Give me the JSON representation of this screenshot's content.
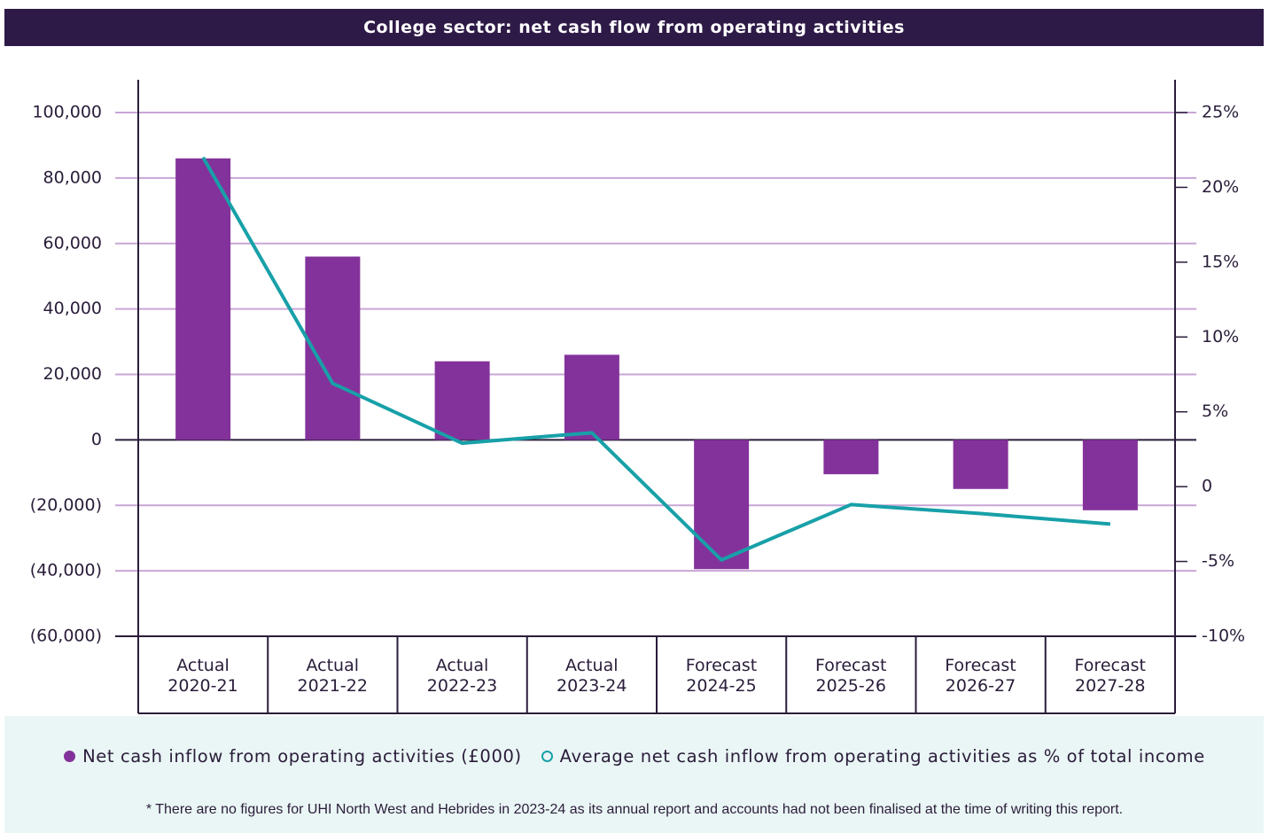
{
  "chart_data": {
    "type": "bar-line",
    "title": "College sector: net cash flow from operating activities",
    "categories": [
      "Actual\n2020-21",
      "Actual\n2021-22",
      "Actual\n2022-23",
      "Actual\n2023-24",
      "Forecast\n2024-25",
      "Forecast\n2025-26",
      "Forecast\n2026-27",
      "Forecast\n2027-28"
    ],
    "series": [
      {
        "name": "Net cash inflow from operating activities (£000)",
        "color": "#84329b",
        "type": "bar",
        "values": [
          86000,
          56000,
          24000,
          26000,
          -39500,
          -10500,
          -15000,
          -21500
        ]
      },
      {
        "name": "Average net cash inflow from operating activities as % of total income",
        "color": "#18a0a8",
        "type": "line",
        "axis": "y2",
        "values": [
          22.0,
          6.9,
          2.9,
          3.6,
          -4.9,
          -1.2,
          -1.8,
          -2.5
        ]
      }
    ],
    "ylim": [
      -60000,
      100000
    ],
    "yticks": [
      {
        "value": -60000,
        "label": "(60,000)"
      },
      {
        "value": -40000,
        "label": "(40,000)"
      },
      {
        "value": -20000,
        "label": "(20,000)"
      },
      0,
      {
        "value": 20000,
        "label": "20,000"
      },
      {
        "value": 40000,
        "label": "40,000"
      },
      {
        "value": 60000,
        "label": "60,000"
      },
      {
        "value": 80000,
        "label": "80,000"
      },
      {
        "value": 100000,
        "label": "100,000"
      }
    ],
    "y2lim": [
      -10,
      25
    ],
    "y2ticks": [
      {
        "value": -10,
        "label": "-10%"
      },
      {
        "value": -5,
        "label": "-5%"
      },
      0,
      {
        "value": 5,
        "label": "5%"
      },
      {
        "value": 10,
        "label": "10%"
      },
      {
        "value": 15,
        "label": "15%"
      },
      {
        "value": 20,
        "label": "20%"
      },
      {
        "value": 25,
        "label": "25%"
      }
    ],
    "grid": true,
    "note": "* There are no figures for UHI North West and Hebrides in 2023-24 as its annual report and accounts had not been finalised at the time of writing this report."
  }
}
